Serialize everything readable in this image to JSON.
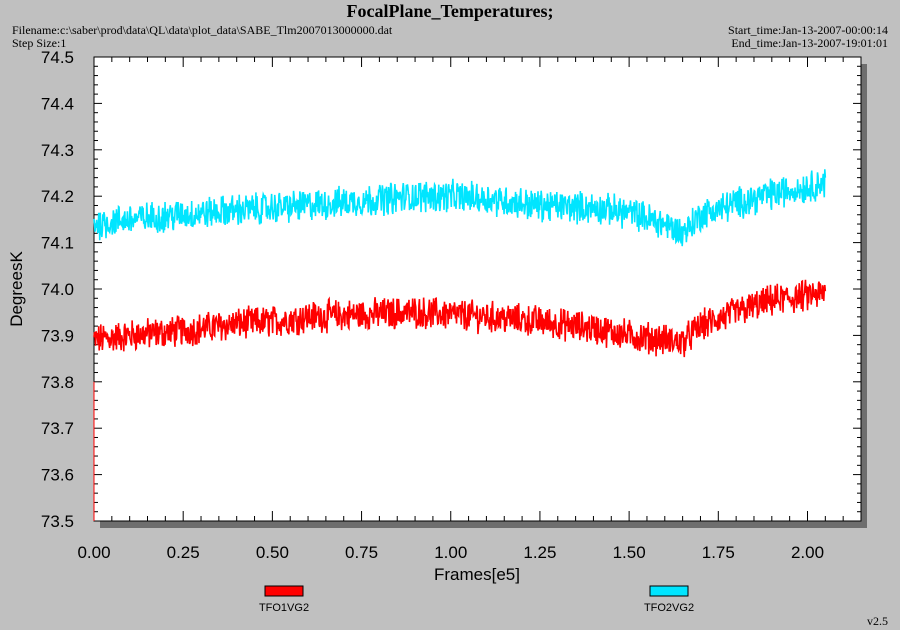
{
  "header": {
    "title": "FocalPlane_Temperatures;",
    "filename": "Filename:c:\\saber\\prod\\data\\QL\\data\\plot_data\\SABE_Tlm2007013000000.dat",
    "step_size": "Step Size:1",
    "start_time": "Start_time:Jan-13-2007-00:00:14",
    "end_time": "End_time:Jan-13-2007-19:01:01"
  },
  "footer": {
    "version": "v2.5"
  },
  "chart_data": {
    "type": "line",
    "title": "FocalPlane_Temperatures;",
    "xlabel": "Frames[e5]",
    "ylabel": "DegreesK",
    "xlim": [
      0,
      2.15
    ],
    "ylim": [
      73.5,
      74.5
    ],
    "xticks": [
      "0.00",
      "0.25",
      "0.50",
      "0.75",
      "1.00",
      "1.25",
      "1.50",
      "1.75",
      "2.00"
    ],
    "yticks": [
      "73.5",
      "73.6",
      "73.7",
      "73.8",
      "73.9",
      "74.0",
      "74.1",
      "74.2",
      "74.3",
      "74.4",
      "74.5"
    ],
    "grid": false,
    "legend_position": "bottom",
    "noise_amplitude": 0.03,
    "series": [
      {
        "name": "TFO1VG2",
        "color": "#ff0000",
        "x": [
          0.0,
          0.1,
          0.25,
          0.4,
          0.5,
          0.6,
          0.75,
          0.9,
          1.0,
          1.1,
          1.25,
          1.4,
          1.5,
          1.6,
          1.65,
          1.7,
          1.8,
          1.9,
          2.0,
          2.05
        ],
        "y": [
          73.89,
          73.9,
          73.91,
          73.925,
          73.93,
          73.94,
          73.945,
          73.95,
          73.945,
          73.94,
          73.93,
          73.915,
          73.9,
          73.89,
          73.885,
          73.92,
          73.95,
          73.975,
          73.985,
          73.99
        ]
      },
      {
        "name": "TFO2VG2",
        "color": "#00e5ff",
        "x": [
          0.0,
          0.1,
          0.25,
          0.4,
          0.5,
          0.6,
          0.75,
          0.9,
          1.0,
          1.1,
          1.25,
          1.4,
          1.5,
          1.6,
          1.65,
          1.7,
          1.8,
          1.9,
          2.0,
          2.05
        ],
        "y": [
          74.14,
          74.15,
          74.16,
          74.17,
          74.175,
          74.18,
          74.19,
          74.2,
          74.2,
          74.195,
          74.18,
          74.175,
          74.165,
          74.14,
          74.12,
          74.16,
          74.185,
          74.205,
          74.22,
          74.23
        ]
      }
    ]
  }
}
